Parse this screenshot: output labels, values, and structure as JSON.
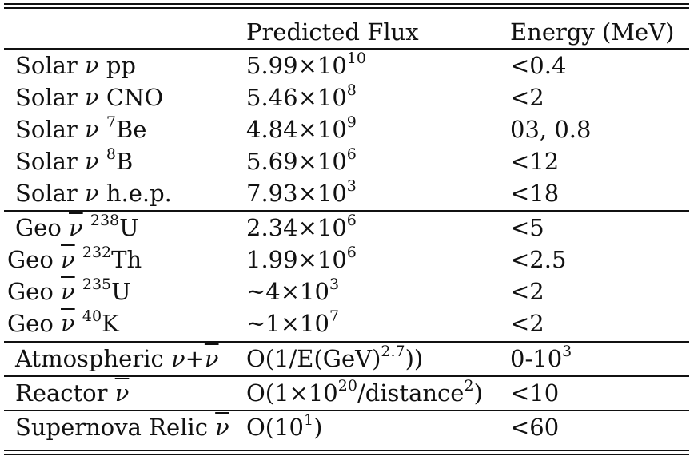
{
  "table": {
    "headers": [
      "",
      "Predicted Flux",
      "Energy (MeV)"
    ],
    "rows": [
      {
        "source": "Solar ν pp",
        "flux": "5.99×10^10",
        "energy": "<0.4"
      },
      {
        "source": "Solar ν CNO",
        "flux": "5.46×10^8",
        "energy": "<2"
      },
      {
        "source": "Solar ν 7Be",
        "flux": "4.84×10^9",
        "energy": "03, 0.8"
      },
      {
        "source": "Solar ν 8B",
        "flux": "5.69×10^6",
        "energy": "<12"
      },
      {
        "source": "Solar ν h.e.p.",
        "flux": "7.93×10^3",
        "energy": "<18"
      },
      {
        "source": "Geo ν̄ 238U",
        "flux": "2.34×10^6",
        "energy": "<5"
      },
      {
        "source": "Geo ν̄ 232Th",
        "flux": "1.99×10^6",
        "energy": "<2.5"
      },
      {
        "source": "Geo ν̄ 235U",
        "flux": "~4×10^3",
        "energy": "<2"
      },
      {
        "source": "Geo ν̄ 40K",
        "flux": "~1×10^7",
        "energy": "<2"
      },
      {
        "source": "Atmospheric ν+ν̄",
        "flux": "O(1/E(GeV)^2.7))",
        "energy": "0-10^3"
      },
      {
        "source": "Reactor ν̄",
        "flux": "O(1×10^20/distance^2)",
        "energy": "<10"
      },
      {
        "source": "Supernova Relic ν̄",
        "flux": "O(10^1)",
        "energy": "<60"
      }
    ]
  }
}
